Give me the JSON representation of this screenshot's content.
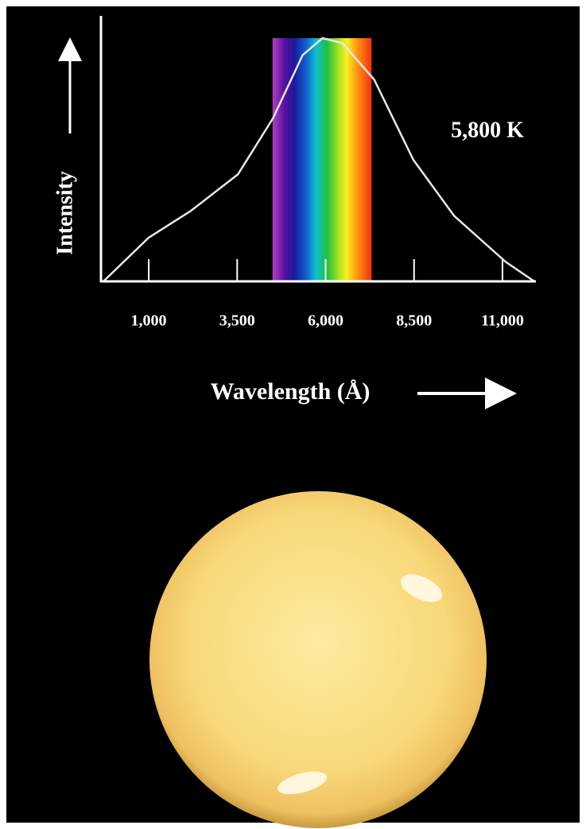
{
  "chart_data": {
    "type": "line",
    "x_label": "Wavelength (Å)",
    "y_label": "Intensity",
    "annotation": "5,800 K",
    "x": [
      -280,
      1000,
      2190,
      3520,
      4510,
      5350,
      5910,
      6470,
      7370,
      8480,
      9630,
      11090,
      11900
    ],
    "values": [
      0,
      0.18,
      0.29,
      0.44,
      0.67,
      0.93,
      1.0,
      0.98,
      0.83,
      0.5,
      0.27,
      0.08,
      0
    ],
    "color": "#e8e8e8",
    "spectrum_band": [
      4500,
      7300
    ],
    "xlim": [
      -350,
      11900
    ],
    "ylim": [
      0,
      1
    ],
    "xticks": [
      {
        "value": 1000,
        "label": "1,000"
      },
      {
        "value": 3500,
        "label": "3,500"
      },
      {
        "value": 6000,
        "label": "6,000"
      },
      {
        "value": 8500,
        "label": "8,500"
      },
      {
        "value": 11000,
        "label": "11,000"
      }
    ]
  }
}
